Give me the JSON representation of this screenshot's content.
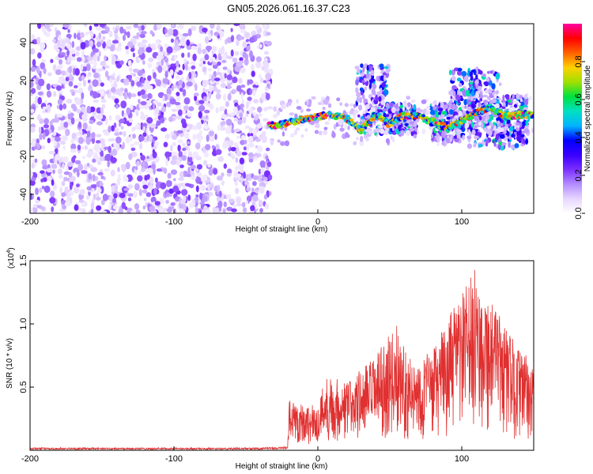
{
  "title": "GN05.2026.061.16.37.C23",
  "colors": {
    "snr_line": "#e03030",
    "colormap": [
      "#ffffff",
      "#e6d6ff",
      "#b38cff",
      "#7a2fff",
      "#3a00ff",
      "#0000ff",
      "#00b4ff",
      "#00e0c0",
      "#00e040",
      "#a0e000",
      "#ffd000",
      "#ff6000",
      "#ff0000",
      "#ff00a0"
    ]
  },
  "chart_data": [
    {
      "type": "heatmap",
      "title": "GN05.2026.061.16.37.C23",
      "xlabel": "Height of straight line (km)",
      "ylabel": "Frequency (Hz)",
      "xlim": [
        -200,
        150
      ],
      "ylim": [
        -50,
        50
      ],
      "x_ticks": [
        -200,
        -100,
        0,
        100
      ],
      "y_ticks": [
        40,
        20,
        0,
        -20,
        -40
      ],
      "colorbar": {
        "label": "Normalized spectral amplitude",
        "range": [
          0,
          1
        ],
        "ticks": [
          "0.0",
          "0.2",
          "0.4",
          "0.6",
          "0.8"
        ]
      },
      "noise_region": {
        "x_from": -200,
        "x_to": -33,
        "freq_range": [
          -50,
          50
        ]
      },
      "ridge": [
        {
          "x": -35,
          "f": -4
        },
        {
          "x": -25,
          "f": -3
        },
        {
          "x": -15,
          "f": -1
        },
        {
          "x": 0,
          "f": 1
        },
        {
          "x": 10,
          "f": 2
        },
        {
          "x": 20,
          "f": 0
        },
        {
          "x": 30,
          "f": -6
        },
        {
          "x": 40,
          "f": 2
        },
        {
          "x": 50,
          "f": -3
        },
        {
          "x": 60,
          "f": 2
        },
        {
          "x": 70,
          "f": 1
        },
        {
          "x": 80,
          "f": -2
        },
        {
          "x": 90,
          "f": -5
        },
        {
          "x": 100,
          "f": -1
        },
        {
          "x": 110,
          "f": 3
        },
        {
          "x": 120,
          "f": 6
        },
        {
          "x": 130,
          "f": 1
        },
        {
          "x": 140,
          "f": 2
        },
        {
          "x": 150,
          "f": 2
        }
      ],
      "bursts": [
        {
          "x": 38,
          "f": 10,
          "spread": 18
        },
        {
          "x": 57,
          "f": 0,
          "spread": 8
        },
        {
          "x": 90,
          "f": -2,
          "spread": 10
        },
        {
          "x": 103,
          "f": 10,
          "spread": 16
        },
        {
          "x": 116,
          "f": 5,
          "spread": 20
        },
        {
          "x": 135,
          "f": -2,
          "spread": 14
        }
      ]
    },
    {
      "type": "line",
      "xlabel": "Height of straight line (km)",
      "ylabel": "SNR (10 * v/v)",
      "scale_note": "(x10",
      "scale_exp": "4",
      "scale_close": ")",
      "xlim": [
        -200,
        150
      ],
      "ylim": [
        0,
        1.5
      ],
      "x_ticks": [
        -200,
        -100,
        0,
        100
      ],
      "y_ticks": [
        "0.5",
        "1.0",
        "1.5"
      ],
      "series": [
        {
          "name": "SNR",
          "envelope": [
            {
              "x": -200,
              "v": 0.02
            },
            {
              "x": -40,
              "v": 0.02
            },
            {
              "x": -21,
              "v": 0.03
            },
            {
              "x": -20,
              "v": 0.4
            },
            {
              "x": 0,
              "v": 0.35
            },
            {
              "x": 5,
              "v": 0.6
            },
            {
              "x": 20,
              "v": 0.55
            },
            {
              "x": 40,
              "v": 0.75
            },
            {
              "x": 55,
              "v": 1.0
            },
            {
              "x": 65,
              "v": 0.7
            },
            {
              "x": 80,
              "v": 0.8
            },
            {
              "x": 95,
              "v": 1.15
            },
            {
              "x": 110,
              "v": 1.45
            },
            {
              "x": 125,
              "v": 1.1
            },
            {
              "x": 140,
              "v": 0.8
            },
            {
              "x": 150,
              "v": 0.7
            }
          ]
        }
      ]
    }
  ]
}
